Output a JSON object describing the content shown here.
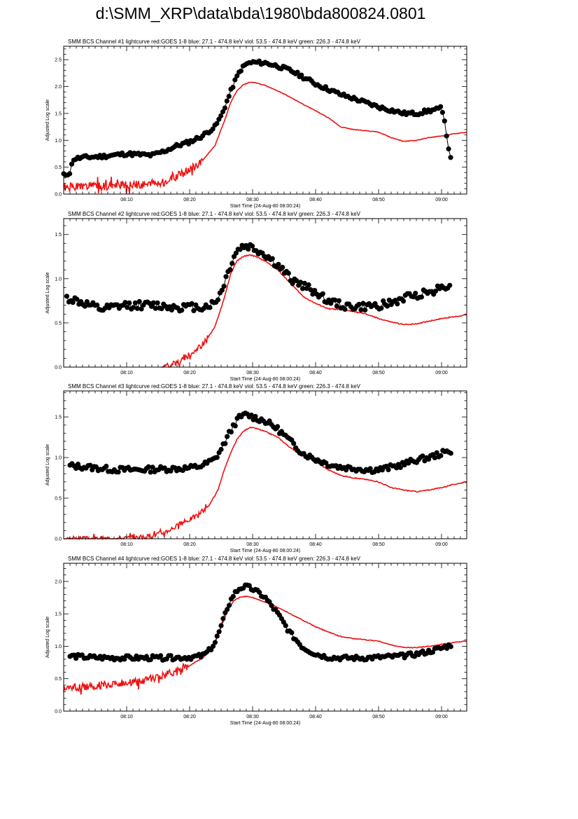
{
  "page_title": "d:\\SMM_XRP\\data\\bda\\1980\\bda800824.0801",
  "colors": {
    "goes": "#ee1111",
    "bcs": "#000000",
    "background": "#ffffff"
  },
  "chart_data": [
    {
      "type": "line",
      "title": "SMM BCS Channel #1 lightcurve  red:GOES 1-8  blue: 27.1 - 474.8 keV  viol: 53.5 - 474.8 keV  green: 226.3 - 474.8 keV",
      "xlabel": "Start Time (24-Aug-80 08:00:24)",
      "ylabel": "Adjusted Log scale",
      "xlim": [
        8.0,
        72.0
      ],
      "ylim": [
        0.0,
        2.75
      ],
      "xticks": [
        {
          "value": 18.0,
          "label": "08:10"
        },
        {
          "value": 28.0,
          "label": "08:20"
        },
        {
          "value": 38.0,
          "label": "08:30"
        },
        {
          "value": 48.0,
          "label": "08:40"
        },
        {
          "value": 58.0,
          "label": "08:50"
        },
        {
          "value": 68.0,
          "label": "09:00"
        }
      ],
      "yticks": [
        {
          "value": 0.0,
          "label": "0.0"
        },
        {
          "value": 0.5,
          "label": "0.5"
        },
        {
          "value": 1.0,
          "label": "1.0"
        },
        {
          "value": 1.5,
          "label": "1.5"
        },
        {
          "value": 2.0,
          "label": "2.0"
        },
        {
          "value": 2.5,
          "label": "2.5"
        }
      ],
      "series": [
        {
          "name": "GOES 1-8",
          "style": "line",
          "x": [
            8.0,
            14.0,
            20.0,
            24.0,
            26.0,
            28.0,
            30.0,
            32.0,
            33.5,
            34.5,
            35.5,
            36.5,
            37.5,
            38.5,
            40.0,
            42.0,
            44.0,
            46.0,
            48.0,
            50.0,
            52.0,
            54.0,
            56.0,
            58.0,
            60.0,
            62.0,
            64.0,
            66.0,
            68.0,
            70.0,
            72.0
          ],
          "y": [
            0.12,
            0.15,
            0.17,
            0.22,
            0.33,
            0.45,
            0.62,
            0.9,
            1.35,
            1.7,
            1.92,
            2.03,
            2.08,
            2.07,
            2.02,
            1.92,
            1.8,
            1.67,
            1.55,
            1.42,
            1.25,
            1.2,
            1.18,
            1.15,
            1.05,
            0.98,
            1.0,
            1.05,
            1.08,
            1.12,
            1.15
          ],
          "noise": {
            "start": 8.0,
            "end": 30.0,
            "amplitude": 0.08,
            "seed": 1
          }
        },
        {
          "name": "BCS Channel #1",
          "style": "markers",
          "x": [
            8.0,
            9.0,
            9.5,
            11.0,
            14.0,
            18.0,
            22.0,
            24.0,
            26.0,
            28.0,
            30.0,
            32.0,
            33.0,
            34.0,
            35.0,
            36.0,
            37.0,
            38.0,
            40.0,
            42.0,
            44.0,
            46.0,
            48.0,
            50.0,
            52.0,
            54.0,
            56.0,
            58.0,
            60.0,
            62.0,
            64.0,
            66.0,
            67.5,
            68.0,
            68.5,
            69.0,
            69.5
          ],
          "y": [
            0.35,
            0.4,
            0.65,
            0.68,
            0.7,
            0.75,
            0.72,
            0.8,
            0.9,
            0.97,
            1.08,
            1.25,
            1.45,
            1.75,
            2.05,
            2.3,
            2.42,
            2.45,
            2.44,
            2.38,
            2.3,
            2.18,
            2.05,
            1.95,
            1.85,
            1.78,
            1.7,
            1.62,
            1.56,
            1.5,
            1.5,
            1.55,
            1.58,
            1.6,
            1.35,
            0.9,
            0.65
          ],
          "noise": {
            "start": 8.0,
            "end": 68.0,
            "amplitude": 0.035,
            "seed": 11
          }
        }
      ]
    },
    {
      "type": "line",
      "title": "SMM BCS Channel #2 lightcurve  red:GOES 1-8  blue: 27.1 - 474.8 keV  viol: 53.5 - 474.8 keV  green: 226.3 - 474.8 keV",
      "xlabel": "Start Time (24-Aug-80 08:00:24)",
      "ylabel": "Adjusted Log scale",
      "xlim": [
        8.0,
        72.0
      ],
      "ylim": [
        0.0,
        1.68
      ],
      "xticks": [
        {
          "value": 18.0,
          "label": "08:10"
        },
        {
          "value": 28.0,
          "label": "08:20"
        },
        {
          "value": 38.0,
          "label": "08:30"
        },
        {
          "value": 48.0,
          "label": "08:40"
        },
        {
          "value": 58.0,
          "label": "08:50"
        },
        {
          "value": 68.0,
          "label": "09:00"
        }
      ],
      "yticks": [
        {
          "value": 0.0,
          "label": "0.0"
        },
        {
          "value": 0.5,
          "label": "0.5"
        },
        {
          "value": 1.0,
          "label": "1.0"
        },
        {
          "value": 1.5,
          "label": "1.5"
        }
      ],
      "series": [
        {
          "name": "GOES 1-8",
          "style": "line",
          "x": [
            23.5,
            26.0,
            28.0,
            30.0,
            32.0,
            33.5,
            34.5,
            35.5,
            36.5,
            37.5,
            38.5,
            40.0,
            42.0,
            44.0,
            46.0,
            48.0,
            50.0,
            52.0,
            54.0,
            56.0,
            58.0,
            60.0,
            62.0,
            64.0,
            66.0,
            68.0,
            70.0,
            72.0
          ],
          "y": [
            0.0,
            0.05,
            0.14,
            0.25,
            0.45,
            0.78,
            1.05,
            1.2,
            1.25,
            1.27,
            1.25,
            1.2,
            1.1,
            0.95,
            0.8,
            0.72,
            0.66,
            0.65,
            0.63,
            0.6,
            0.55,
            0.51,
            0.48,
            0.49,
            0.52,
            0.55,
            0.57,
            0.59
          ],
          "noise": {
            "start": 23.5,
            "end": 31.0,
            "amplitude": 0.03,
            "seed": 2
          }
        },
        {
          "name": "BCS Channel #2",
          "style": "markers",
          "x": [
            8.5,
            10.0,
            12.0,
            14.0,
            18.0,
            22.0,
            26.0,
            30.0,
            32.0,
            33.0,
            34.0,
            35.0,
            36.0,
            37.0,
            38.0,
            40.0,
            42.0,
            44.0,
            46.0,
            48.0,
            50.0,
            52.0,
            54.0,
            56.0,
            58.0,
            60.0,
            62.0,
            64.0,
            66.0,
            68.0,
            69.5
          ],
          "y": [
            0.78,
            0.75,
            0.7,
            0.65,
            0.7,
            0.7,
            0.68,
            0.68,
            0.72,
            0.85,
            1.05,
            1.25,
            1.35,
            1.37,
            1.35,
            1.27,
            1.15,
            1.0,
            0.92,
            0.85,
            0.75,
            0.7,
            0.68,
            0.68,
            0.7,
            0.72,
            0.78,
            0.82,
            0.85,
            0.9,
            0.95
          ],
          "noise": {
            "start": 8.5,
            "end": 69.5,
            "amplitude": 0.045,
            "seed": 12
          }
        }
      ]
    },
    {
      "type": "line",
      "title": "SMM BCS Channel #3 lightcurve  red:GOES 1-8  blue: 27.1 - 474.8 keV  viol: 53.5 - 474.8 keV  green: 226.3 - 474.8 keV",
      "xlabel": "Start Time (24-Aug-80 08:00:24)",
      "ylabel": "Adjusted Log scale",
      "xlim": [
        8.0,
        72.0
      ],
      "ylim": [
        0.0,
        1.82
      ],
      "xticks": [
        {
          "value": 18.0,
          "label": "08:10"
        },
        {
          "value": 28.0,
          "label": "08:20"
        },
        {
          "value": 38.0,
          "label": "08:30"
        },
        {
          "value": 48.0,
          "label": "08:40"
        },
        {
          "value": 58.0,
          "label": "08:50"
        },
        {
          "value": 68.0,
          "label": "09:00"
        }
      ],
      "yticks": [
        {
          "value": 0.0,
          "label": "0.0"
        },
        {
          "value": 0.5,
          "label": "0.5"
        },
        {
          "value": 1.0,
          "label": "1.0"
        },
        {
          "value": 1.5,
          "label": "1.5"
        }
      ],
      "series": [
        {
          "name": "GOES 1-8",
          "style": "line",
          "x": [
            8.0,
            14.0,
            18.0,
            21.0,
            24.0,
            27.0,
            29.0,
            31.0,
            32.5,
            33.5,
            34.5,
            35.5,
            36.5,
            37.5,
            38.5,
            40.0,
            42.0,
            44.0,
            46.0,
            48.0,
            50.0,
            52.0,
            54.0,
            56.0,
            58.0,
            60.0,
            62.0,
            64.0,
            66.0,
            68.0,
            70.0,
            72.0
          ],
          "y": [
            0.0,
            0.0,
            0.01,
            0.02,
            0.08,
            0.2,
            0.28,
            0.4,
            0.6,
            0.85,
            1.05,
            1.22,
            1.32,
            1.37,
            1.36,
            1.32,
            1.25,
            1.12,
            1.02,
            0.95,
            0.85,
            0.78,
            0.75,
            0.73,
            0.7,
            0.63,
            0.6,
            0.58,
            0.6,
            0.63,
            0.67,
            0.7
          ],
          "noise": {
            "start": 8.0,
            "end": 31.0,
            "amplitude": 0.03,
            "seed": 3
          }
        },
        {
          "name": "BCS Channel #3",
          "style": "markers",
          "x": [
            9.0,
            12.0,
            16.0,
            20.0,
            24.0,
            28.0,
            30.0,
            32.0,
            33.0,
            34.0,
            35.0,
            36.0,
            37.0,
            38.0,
            40.0,
            42.0,
            44.0,
            46.0,
            48.0,
            50.0,
            52.0,
            54.0,
            56.0,
            58.0,
            60.0,
            62.0,
            64.0,
            66.0,
            68.0,
            69.5
          ],
          "y": [
            0.9,
            0.88,
            0.85,
            0.85,
            0.86,
            0.87,
            0.9,
            0.98,
            1.1,
            1.25,
            1.4,
            1.5,
            1.53,
            1.5,
            1.45,
            1.35,
            1.2,
            1.05,
            0.98,
            0.92,
            0.88,
            0.87,
            0.85,
            0.85,
            0.88,
            0.92,
            0.97,
            1.0,
            1.05,
            1.08
          ],
          "noise": {
            "start": 9.0,
            "end": 69.5,
            "amplitude": 0.035,
            "seed": 13
          }
        }
      ]
    },
    {
      "type": "line",
      "title": "SMM BCS Channel #4 lightcurve  red:GOES 1-8  blue: 27.1 - 474.8 keV  viol: 53.5 - 474.8 keV  green: 226.3 - 474.8 keV",
      "xlabel": "Start Time (24-Aug-80 08:00:24)",
      "ylabel": "Adjusted Log scale",
      "xlim": [
        8.0,
        72.0
      ],
      "ylim": [
        0.0,
        2.28
      ],
      "xticks": [
        {
          "value": 18.0,
          "label": "08:10"
        },
        {
          "value": 28.0,
          "label": "08:20"
        },
        {
          "value": 38.0,
          "label": "08:30"
        },
        {
          "value": 48.0,
          "label": "08:40"
        },
        {
          "value": 58.0,
          "label": "08:50"
        },
        {
          "value": 68.0,
          "label": "09:00"
        }
      ],
      "yticks": [
        {
          "value": 0.0,
          "label": "0.0"
        },
        {
          "value": 0.5,
          "label": "0.5"
        },
        {
          "value": 1.0,
          "label": "1.0"
        },
        {
          "value": 1.5,
          "label": "1.5"
        },
        {
          "value": 2.0,
          "label": "2.0"
        }
      ],
      "series": [
        {
          "name": "GOES 1-8",
          "style": "line",
          "x": [
            8.0,
            14.0,
            20.0,
            24.0,
            26.0,
            28.0,
            30.0,
            31.0,
            32.0,
            33.0,
            34.0,
            35.0,
            36.0,
            37.0,
            38.0,
            40.0,
            42.0,
            44.0,
            46.0,
            48.0,
            50.0,
            52.0,
            54.0,
            56.0,
            58.0,
            60.0,
            62.0,
            64.0,
            66.0,
            68.0,
            70.0,
            72.0
          ],
          "y": [
            0.35,
            0.4,
            0.45,
            0.55,
            0.62,
            0.7,
            0.82,
            0.9,
            1.05,
            1.3,
            1.55,
            1.7,
            1.76,
            1.77,
            1.75,
            1.68,
            1.6,
            1.5,
            1.4,
            1.3,
            1.22,
            1.15,
            1.12,
            1.1,
            1.08,
            1.02,
            0.98,
            0.98,
            1.0,
            1.03,
            1.06,
            1.08
          ],
          "noise": {
            "start": 8.0,
            "end": 28.0,
            "amplitude": 0.06,
            "seed": 4
          }
        },
        {
          "name": "BCS Channel #4",
          "style": "markers",
          "x": [
            9.0,
            12.0,
            16.0,
            20.0,
            24.0,
            28.0,
            30.0,
            31.0,
            32.0,
            33.0,
            34.0,
            35.0,
            36.0,
            37.0,
            38.0,
            39.0,
            40.0,
            42.0,
            44.0,
            46.0,
            48.0,
            50.0,
            52.0,
            54.0,
            56.0,
            58.0,
            60.0,
            62.0,
            64.0,
            66.0,
            68.0,
            69.5
          ],
          "y": [
            0.85,
            0.83,
            0.82,
            0.82,
            0.82,
            0.83,
            0.85,
            0.92,
            1.05,
            1.3,
            1.6,
            1.8,
            1.9,
            1.92,
            1.88,
            1.82,
            1.75,
            1.5,
            1.2,
            0.98,
            0.88,
            0.83,
            0.82,
            0.82,
            0.82,
            0.83,
            0.84,
            0.85,
            0.88,
            0.92,
            0.97,
            1.02
          ],
          "noise": {
            "start": 9.0,
            "end": 69.5,
            "amplitude": 0.035,
            "seed": 14
          }
        }
      ]
    }
  ]
}
